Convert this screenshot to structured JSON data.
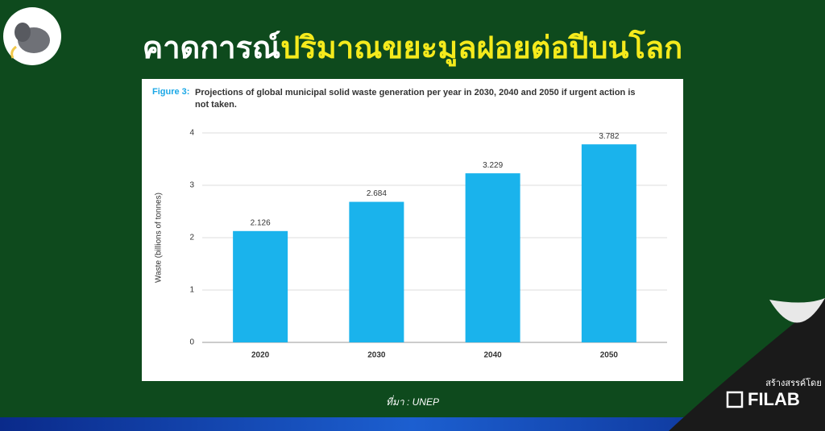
{
  "header": {
    "title_white": "คาดการณ์",
    "title_yellow": "ปริมาณขยะมูลฝอยต่อปีบนโลก"
  },
  "chart_data": {
    "type": "bar",
    "figure_label": "Figure 3:",
    "title": "Projections of global municipal solid waste generation per year in 2030, 2040 and 2050 if urgent action is not taken.",
    "y_label": "Waste (billions of tonnes)",
    "categories": [
      "2020",
      "2030",
      "2040",
      "2050"
    ],
    "values": [
      2.126,
      2.684,
      3.229,
      3.782
    ],
    "color": "#1ab3ec",
    "ylim": [
      0,
      4
    ],
    "yticks": [
      0,
      1,
      2,
      3,
      4
    ],
    "grid": true
  },
  "footer": {
    "source": "ที่มา : UNEP",
    "credit": "สร้างสรรค์โดย",
    "brand": "FILAB"
  }
}
